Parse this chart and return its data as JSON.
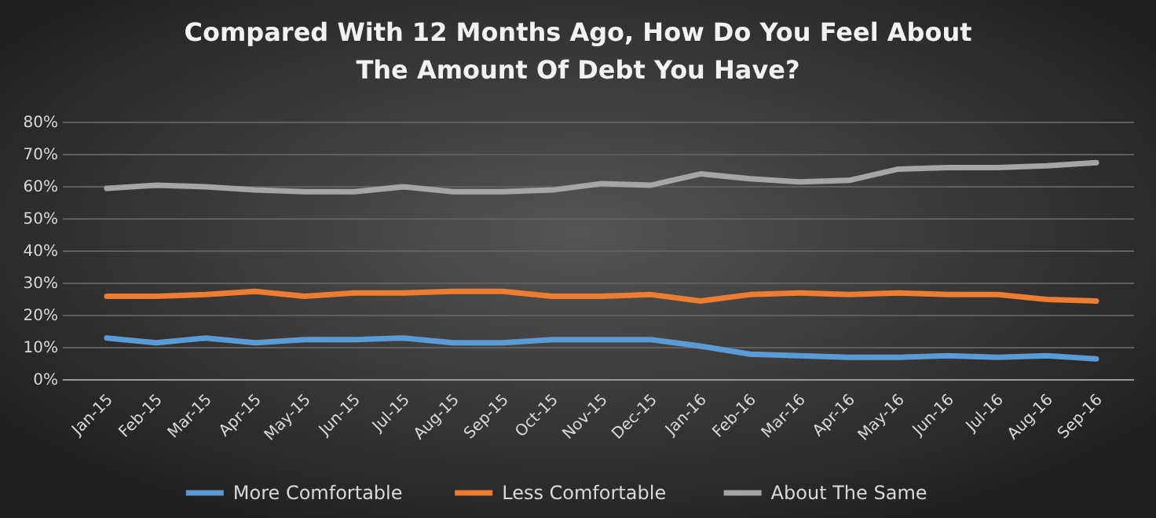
{
  "chart_data": {
    "type": "line",
    "title": "Compared With 12 Months Ago, How Do You Feel About\nThe Amount Of Debt You Have?",
    "categories": [
      "Jan-15",
      "Feb-15",
      "Mar-15",
      "Apr-15",
      "May-15",
      "Jun-15",
      "Jul-15",
      "Aug-15",
      "Sep-15",
      "Oct-15",
      "Nov-15",
      "Dec-15",
      "Jan-16",
      "Feb-16",
      "Mar-16",
      "Apr-16",
      "May-16",
      "Jun-16",
      "Jul-16",
      "Aug-16",
      "Sep-16"
    ],
    "series": [
      {
        "name": "More Comfortable",
        "color": "#5b9bd5",
        "values": [
          13,
          11.5,
          13,
          11.5,
          12.5,
          12.5,
          13,
          11.5,
          11.5,
          12.5,
          12.5,
          12.5,
          10.5,
          8,
          7.5,
          7,
          7,
          7.5,
          7,
          7.5,
          6.5
        ]
      },
      {
        "name": "Less Comfortable",
        "color": "#ed7d31",
        "values": [
          26,
          26,
          26.5,
          27.5,
          26,
          27,
          27,
          27.5,
          27.5,
          26,
          26,
          26.5,
          24.5,
          26.5,
          27,
          26.5,
          27,
          26.5,
          26.5,
          25,
          24.5
        ]
      },
      {
        "name": "About The Same",
        "color": "#a5a5a5",
        "values": [
          59.5,
          60.5,
          60,
          59,
          58.5,
          58.5,
          60,
          58.5,
          58.5,
          59,
          61,
          60.5,
          64,
          62.5,
          61.5,
          62,
          65.5,
          66,
          66,
          66.5,
          67.5
        ]
      }
    ],
    "ylim": [
      0,
      80
    ],
    "yticks": [
      {
        "value": 0,
        "label": "0%"
      },
      {
        "value": 10,
        "label": "10%"
      },
      {
        "value": 20,
        "label": "20%"
      },
      {
        "value": 30,
        "label": "30%"
      },
      {
        "value": 40,
        "label": "40%"
      },
      {
        "value": 50,
        "label": "50%"
      },
      {
        "value": 60,
        "label": "60%"
      },
      {
        "value": 70,
        "label": "70%"
      },
      {
        "value": 80,
        "label": "80%"
      }
    ],
    "grid": "y",
    "legend": "bottom",
    "marker": "none",
    "line_style": "solid"
  }
}
